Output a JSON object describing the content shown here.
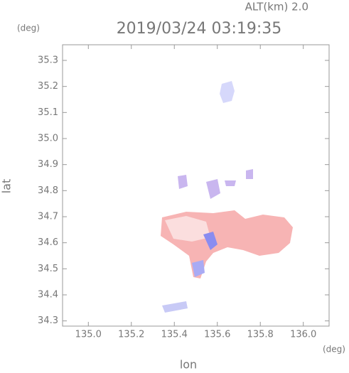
{
  "chart_data": {
    "type": "map",
    "title": "2019/03/24 03:19:35",
    "subtitle": "ALT(km) 2.0",
    "x_label": "lon",
    "y_label": "lat",
    "x_unit": "(deg)",
    "y_unit": "(deg)",
    "xlim": [
      134.88,
      136.12
    ],
    "ylim": [
      34.28,
      35.36
    ],
    "xticks": [
      {
        "value": 135,
        "label": "135.0"
      },
      135.2,
      135.4,
      135.6,
      135.8,
      {
        "value": 136,
        "label": "136.0"
      }
    ],
    "yticks": [
      34.3,
      34.4,
      34.5,
      34.6,
      34.7,
      34.8,
      34.9,
      {
        "value": 35,
        "label": "35.0"
      },
      35.1,
      35.2,
      35.3
    ]
  }
}
